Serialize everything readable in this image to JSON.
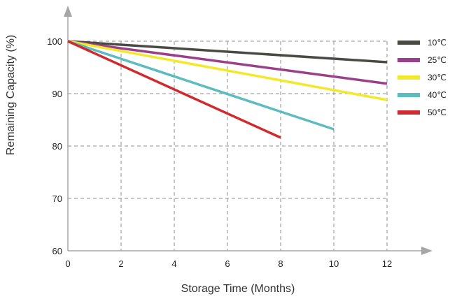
{
  "chart_data": {
    "type": "line",
    "title": "",
    "xlabel": "Storage Time (Months)",
    "ylabel": "Remaining Capacity (%)",
    "xlim": [
      0,
      12
    ],
    "ylim": [
      60,
      100
    ],
    "xticks": [
      "0",
      "2",
      "4",
      "6",
      "8",
      "10",
      "12"
    ],
    "yticks": [
      "60",
      "70",
      "80",
      "90",
      "100"
    ],
    "grid": true,
    "legend_position": "right",
    "series": [
      {
        "name": "10℃",
        "color": "#4a4a45",
        "x": [
          0,
          12
        ],
        "y": [
          100,
          96.0
        ]
      },
      {
        "name": "25℃",
        "color": "#9c3f8a",
        "x": [
          0,
          12
        ],
        "y": [
          100,
          91.9
        ]
      },
      {
        "name": "30℃",
        "color": "#f3e82a",
        "x": [
          0,
          12
        ],
        "y": [
          100,
          88.8
        ]
      },
      {
        "name": "40℃",
        "color": "#5dbcc0",
        "x": [
          0,
          10
        ],
        "y": [
          100,
          83.2
        ]
      },
      {
        "name": "50℃",
        "color": "#d12a2e",
        "x": [
          0,
          8
        ],
        "y": [
          100,
          81.6
        ]
      }
    ]
  }
}
